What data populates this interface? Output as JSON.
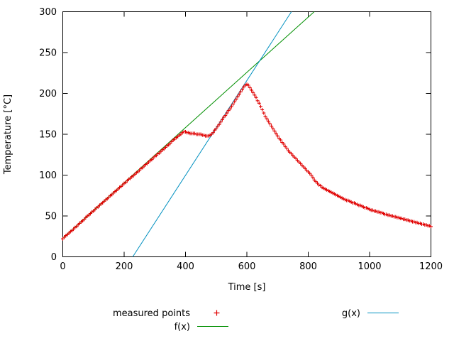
{
  "chart_data": {
    "type": "scatter",
    "title": "",
    "xlabel": "Time [s]",
    "ylabel": "Temperature [°C]",
    "xlim": [
      0,
      1200
    ],
    "ylim": [
      0,
      300
    ],
    "xticks": [
      0,
      200,
      400,
      600,
      800,
      1000,
      1200
    ],
    "yticks": [
      0,
      50,
      100,
      150,
      200,
      250,
      300
    ],
    "grid": false,
    "legend_position": "below-center",
    "series": [
      {
        "name": "measured points",
        "type": "points",
        "marker": "plus",
        "color": "#e00000",
        "points": [
          [
            0,
            22
          ],
          [
            5,
            24
          ],
          [
            10,
            26
          ],
          [
            15,
            27
          ],
          [
            20,
            29
          ],
          [
            25,
            31
          ],
          [
            30,
            32
          ],
          [
            35,
            34
          ],
          [
            40,
            36
          ],
          [
            45,
            37
          ],
          [
            50,
            39
          ],
          [
            55,
            41
          ],
          [
            60,
            43
          ],
          [
            65,
            44
          ],
          [
            70,
            46
          ],
          [
            75,
            48
          ],
          [
            80,
            50
          ],
          [
            85,
            51
          ],
          [
            90,
            53
          ],
          [
            95,
            55
          ],
          [
            100,
            56
          ],
          [
            105,
            58
          ],
          [
            110,
            60
          ],
          [
            115,
            61
          ],
          [
            120,
            63
          ],
          [
            125,
            65
          ],
          [
            130,
            66
          ],
          [
            135,
            68
          ],
          [
            140,
            70
          ],
          [
            145,
            71
          ],
          [
            150,
            73
          ],
          [
            155,
            75
          ],
          [
            160,
            76
          ],
          [
            165,
            78
          ],
          [
            170,
            80
          ],
          [
            175,
            81
          ],
          [
            180,
            83
          ],
          [
            185,
            85
          ],
          [
            190,
            86
          ],
          [
            195,
            88
          ],
          [
            200,
            90
          ],
          [
            205,
            91
          ],
          [
            210,
            93
          ],
          [
            215,
            95
          ],
          [
            220,
            96
          ],
          [
            225,
            98
          ],
          [
            230,
            99
          ],
          [
            235,
            101
          ],
          [
            240,
            103
          ],
          [
            245,
            104
          ],
          [
            250,
            106
          ],
          [
            255,
            108
          ],
          [
            260,
            109
          ],
          [
            265,
            111
          ],
          [
            270,
            113
          ],
          [
            275,
            114
          ],
          [
            280,
            116
          ],
          [
            285,
            118
          ],
          [
            290,
            119
          ],
          [
            295,
            121
          ],
          [
            300,
            123
          ],
          [
            305,
            124
          ],
          [
            310,
            126
          ],
          [
            315,
            127
          ],
          [
            320,
            129
          ],
          [
            325,
            131
          ],
          [
            330,
            132
          ],
          [
            335,
            134
          ],
          [
            340,
            136
          ],
          [
            345,
            137
          ],
          [
            350,
            139
          ],
          [
            355,
            141
          ],
          [
            360,
            143
          ],
          [
            365,
            144
          ],
          [
            370,
            146
          ],
          [
            375,
            147
          ],
          [
            380,
            149
          ],
          [
            385,
            150
          ],
          [
            390,
            152
          ],
          [
            395,
            153
          ],
          [
            400,
            153
          ],
          [
            405,
            152
          ],
          [
            410,
            152
          ],
          [
            415,
            151
          ],
          [
            420,
            151
          ],
          [
            425,
            151
          ],
          [
            430,
            151
          ],
          [
            435,
            150
          ],
          [
            440,
            150
          ],
          [
            445,
            150
          ],
          [
            450,
            150
          ],
          [
            455,
            149
          ],
          [
            460,
            149
          ],
          [
            465,
            148
          ],
          [
            470,
            148
          ],
          [
            475,
            148
          ],
          [
            480,
            149
          ],
          [
            485,
            150
          ],
          [
            490,
            152
          ],
          [
            495,
            155
          ],
          [
            500,
            157
          ],
          [
            505,
            160
          ],
          [
            510,
            162
          ],
          [
            515,
            165
          ],
          [
            520,
            168
          ],
          [
            525,
            171
          ],
          [
            530,
            173
          ],
          [
            535,
            176
          ],
          [
            540,
            179
          ],
          [
            545,
            181
          ],
          [
            550,
            184
          ],
          [
            555,
            187
          ],
          [
            560,
            190
          ],
          [
            565,
            193
          ],
          [
            570,
            196
          ],
          [
            575,
            199
          ],
          [
            580,
            202
          ],
          [
            585,
            205
          ],
          [
            590,
            208
          ],
          [
            595,
            210
          ],
          [
            600,
            211
          ],
          [
            605,
            210
          ],
          [
            610,
            207
          ],
          [
            615,
            204
          ],
          [
            620,
            201
          ],
          [
            625,
            198
          ],
          [
            630,
            195
          ],
          [
            635,
            191
          ],
          [
            640,
            188
          ],
          [
            645,
            184
          ],
          [
            650,
            180
          ],
          [
            655,
            176
          ],
          [
            660,
            172
          ],
          [
            665,
            169
          ],
          [
            670,
            166
          ],
          [
            675,
            163
          ],
          [
            680,
            160
          ],
          [
            685,
            157
          ],
          [
            690,
            154
          ],
          [
            695,
            151
          ],
          [
            700,
            148
          ],
          [
            705,
            145
          ],
          [
            710,
            143
          ],
          [
            715,
            140
          ],
          [
            720,
            138
          ],
          [
            725,
            135
          ],
          [
            730,
            133
          ],
          [
            735,
            130
          ],
          [
            740,
            128
          ],
          [
            745,
            126
          ],
          [
            750,
            124
          ],
          [
            755,
            122
          ],
          [
            760,
            120
          ],
          [
            765,
            118
          ],
          [
            770,
            116
          ],
          [
            775,
            114
          ],
          [
            780,
            112
          ],
          [
            785,
            110
          ],
          [
            790,
            108
          ],
          [
            795,
            106
          ],
          [
            800,
            104
          ],
          [
            805,
            102
          ],
          [
            810,
            100
          ],
          [
            815,
            97
          ],
          [
            820,
            94
          ],
          [
            825,
            92
          ],
          [
            830,
            90
          ],
          [
            835,
            88
          ],
          [
            840,
            87
          ],
          [
            845,
            85
          ],
          [
            850,
            84
          ],
          [
            855,
            83
          ],
          [
            860,
            82
          ],
          [
            865,
            81
          ],
          [
            870,
            80
          ],
          [
            875,
            79
          ],
          [
            880,
            78
          ],
          [
            885,
            77
          ],
          [
            890,
            76
          ],
          [
            895,
            75
          ],
          [
            900,
            74
          ],
          [
            905,
            73
          ],
          [
            910,
            72
          ],
          [
            915,
            71
          ],
          [
            920,
            70
          ],
          [
            925,
            69
          ],
          [
            930,
            69
          ],
          [
            935,
            68
          ],
          [
            940,
            67
          ],
          [
            945,
            66
          ],
          [
            950,
            66
          ],
          [
            955,
            65
          ],
          [
            960,
            64
          ],
          [
            965,
            63
          ],
          [
            970,
            63
          ],
          [
            975,
            62
          ],
          [
            980,
            61
          ],
          [
            985,
            60
          ],
          [
            990,
            60
          ],
          [
            995,
            59
          ],
          [
            1000,
            58
          ],
          [
            1005,
            57
          ],
          [
            1010,
            57
          ],
          [
            1015,
            56
          ],
          [
            1020,
            56
          ],
          [
            1025,
            55
          ],
          [
            1030,
            55
          ],
          [
            1035,
            54
          ],
          [
            1040,
            54
          ],
          [
            1045,
            53
          ],
          [
            1050,
            52
          ],
          [
            1055,
            52
          ],
          [
            1060,
            51
          ],
          [
            1065,
            51
          ],
          [
            1070,
            50
          ],
          [
            1075,
            50
          ],
          [
            1080,
            49
          ],
          [
            1085,
            49
          ],
          [
            1090,
            48
          ],
          [
            1095,
            48
          ],
          [
            1100,
            47
          ],
          [
            1105,
            47
          ],
          [
            1110,
            46
          ],
          [
            1115,
            46
          ],
          [
            1120,
            45
          ],
          [
            1125,
            45
          ],
          [
            1130,
            44
          ],
          [
            1135,
            44
          ],
          [
            1140,
            43
          ],
          [
            1145,
            43
          ],
          [
            1150,
            42
          ],
          [
            1155,
            42
          ],
          [
            1160,
            41
          ],
          [
            1165,
            41
          ],
          [
            1170,
            40
          ],
          [
            1175,
            40
          ],
          [
            1180,
            39
          ],
          [
            1185,
            39
          ],
          [
            1190,
            38
          ],
          [
            1195,
            38
          ],
          [
            1200,
            37
          ]
        ]
      },
      {
        "name": "f(x)",
        "type": "line",
        "color": "#008f00",
        "slope": 0.338,
        "intercept": 23
      },
      {
        "name": "g(x)",
        "type": "line",
        "color": "#0090c0",
        "slope": 0.58,
        "intercept": -132.24
      }
    ]
  }
}
